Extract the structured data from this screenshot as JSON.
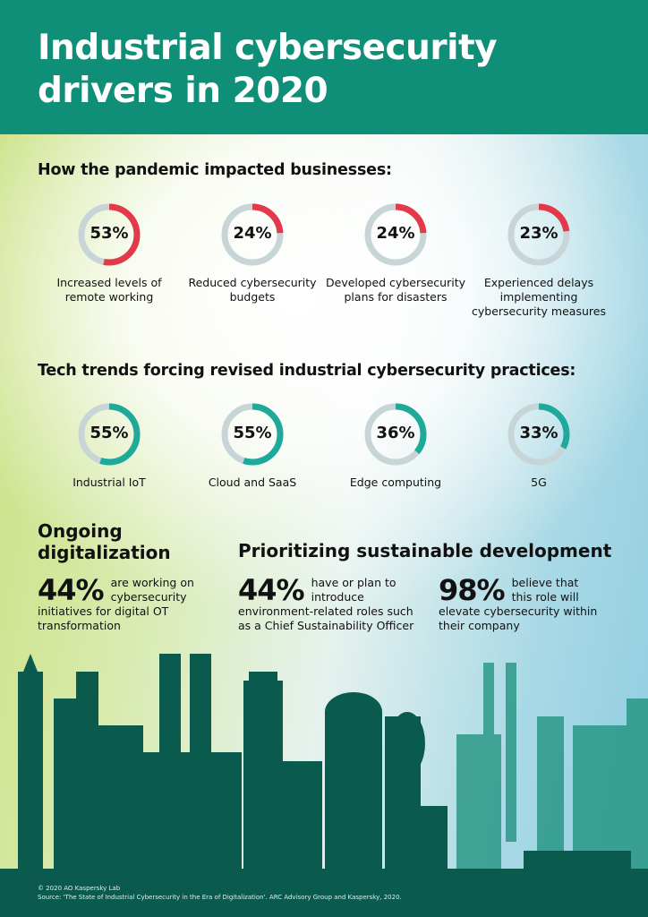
{
  "title": "Industrial cybersecurity drivers in 2020",
  "colors": {
    "header": "#108f78",
    "pandemic_accent": "#e2394b",
    "tech_accent": "#1fa99a",
    "track": "#c8d5d7",
    "skyline": "#0b5a4e"
  },
  "chart_data": [
    {
      "type": "pie",
      "title": "How the pandemic impacted businesses:",
      "categories": [
        "Increased levels of remote working",
        "Reduced cybersecurity budgets",
        "Developed cybersecurity plans for disasters",
        "Experienced delays implementing cybersecurity measures"
      ],
      "values": [
        53,
        24,
        24,
        23
      ],
      "labels": [
        "53%",
        "24%",
        "24%",
        "23%"
      ]
    },
    {
      "type": "pie",
      "title": "Tech trends forcing revised industrial cybersecurity practices:",
      "categories": [
        "Industrial IoT",
        "Cloud and SaaS",
        "Edge computing",
        "5G"
      ],
      "values": [
        55,
        55,
        36,
        33
      ],
      "labels": [
        "55%",
        "55%",
        "36%",
        "33%"
      ]
    }
  ],
  "digitalization": {
    "heading": "Ongoing digitalization",
    "value": "44%",
    "text": "are working on cybersecurity initiatives for digital OT transformation"
  },
  "sustainability": {
    "heading": "Prioritizing sustainable development",
    "stats": [
      {
        "value": "44%",
        "text": "have or plan to introduce environment-related roles such as a Chief Sustainability Officer"
      },
      {
        "value": "98%",
        "text": "believe that this role will elevate cybersecurity within their company"
      }
    ]
  },
  "footer": {
    "copyright": "© 2020 AO Kaspersky Lab",
    "source": "Source: 'The State of Industrial Cybersecurity in the Era of Digitalization'. ARC Advisory Group and Kaspersky, 2020."
  }
}
